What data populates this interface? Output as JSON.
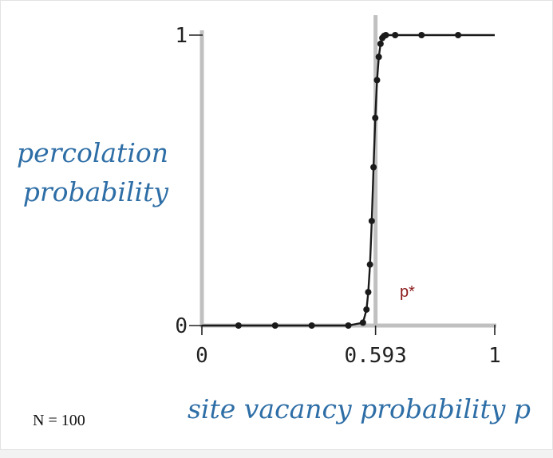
{
  "chart_data": {
    "type": "line",
    "ylabel_lines": [
      "percolation",
      "probability"
    ],
    "xlabel": "site vacancy probability p",
    "annotation_threshold": {
      "x": 0.593,
      "label": "p*"
    },
    "footnote": "N = 100",
    "x_ticks": [
      {
        "value": 0,
        "label": "0"
      },
      {
        "value": 0.593,
        "label": "0.593"
      },
      {
        "value": 1,
        "label": "1"
      }
    ],
    "y_ticks": [
      {
        "value": 0,
        "label": "0"
      },
      {
        "value": 1,
        "label": "1"
      }
    ],
    "xlim": [
      0,
      1
    ],
    "ylim": [
      0,
      1
    ],
    "grid": false,
    "line_color": "#1a1a1a",
    "threshold_color": "#c0c0c0",
    "series": [
      {
        "x": [
          0,
          0.125,
          0.25,
          0.375,
          0.5,
          0.55,
          0.562,
          0.568,
          0.574,
          0.58,
          0.586,
          0.592,
          0.598,
          0.604,
          0.61,
          0.616,
          0.622,
          0.628,
          0.634,
          0.64,
          0.648,
          0.66,
          0.7,
          0.75,
          0.875,
          1
        ],
        "y": [
          0,
          0,
          0,
          0,
          0,
          0.01,
          0.055,
          0.115,
          0.21,
          0.36,
          0.545,
          0.715,
          0.845,
          0.925,
          0.97,
          0.99,
          0.997,
          1,
          1,
          1,
          1,
          1,
          1,
          1,
          1,
          1
        ],
        "markers_x": [
          0.125,
          0.25,
          0.375,
          0.5,
          0.55,
          0.562,
          0.568,
          0.574,
          0.58,
          0.586,
          0.592,
          0.598,
          0.604,
          0.61,
          0.616,
          0.622,
          0.628,
          0.66,
          0.75,
          0.875
        ],
        "markers_y": [
          0,
          0,
          0,
          0,
          0.01,
          0.055,
          0.115,
          0.21,
          0.36,
          0.545,
          0.715,
          0.845,
          0.925,
          0.97,
          0.99,
          0.997,
          1,
          1,
          1,
          1
        ]
      }
    ]
  }
}
